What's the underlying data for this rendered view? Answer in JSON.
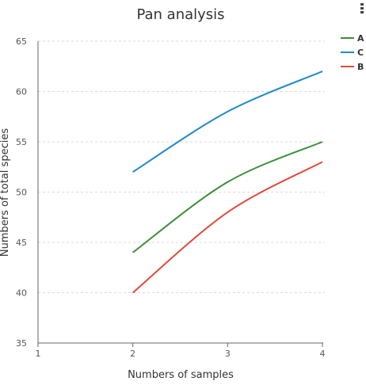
{
  "chart_data": {
    "type": "line",
    "title": "Pan analysis",
    "xlabel": "Numbers of samples",
    "ylabel": "Numbers of total species",
    "xlim": [
      1,
      4
    ],
    "ylim": [
      35,
      65
    ],
    "x_ticks": [
      1,
      2,
      3,
      4
    ],
    "y_ticks": [
      35,
      40,
      45,
      50,
      55,
      60,
      65
    ],
    "grid": true,
    "legend_position": "top-right",
    "series": [
      {
        "name": "A",
        "color": "#3a8f3a",
        "x": [
          2,
          3,
          4
        ],
        "y": [
          44,
          51,
          55
        ]
      },
      {
        "name": "C",
        "color": "#1f8ac9",
        "x": [
          2,
          3,
          4
        ],
        "y": [
          52,
          58,
          62
        ]
      },
      {
        "name": "B",
        "color": "#e04a3a",
        "x": [
          2,
          3,
          4
        ],
        "y": [
          40,
          48,
          53
        ]
      }
    ]
  },
  "menu": {
    "icon": "menu-icon"
  }
}
